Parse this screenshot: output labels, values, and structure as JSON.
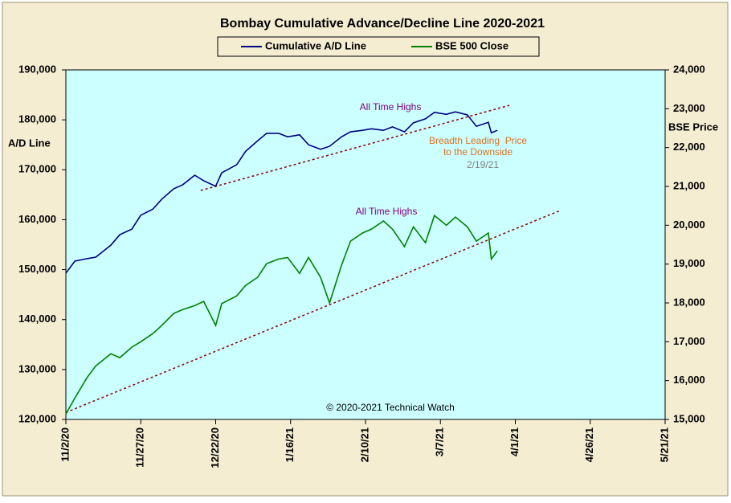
{
  "chart_data": {
    "type": "line",
    "title": "Bombay Cumulative Advance/Decline Line 2020-2021",
    "y_label": "A/D Line",
    "y2_label": "BSE Price",
    "x": [
      "2020-11-02",
      "2020-11-05",
      "2020-11-09",
      "2020-11-12",
      "2020-11-17",
      "2020-11-20",
      "2020-11-24",
      "2020-11-27",
      "2020-12-01",
      "2020-12-04",
      "2020-12-08",
      "2020-12-11",
      "2020-12-15",
      "2020-12-18",
      "2020-12-22",
      "2020-12-24",
      "2020-12-29",
      "2021-01-01",
      "2021-01-05",
      "2021-01-08",
      "2021-01-12",
      "2021-01-15",
      "2021-01-19",
      "2021-01-22",
      "2021-01-26",
      "2021-01-29",
      "2021-02-02",
      "2021-02-05",
      "2021-02-09",
      "2021-02-12",
      "2021-02-16",
      "2021-02-19",
      "2021-02-23",
      "2021-02-26",
      "2021-03-02",
      "2021-03-05",
      "2021-03-09",
      "2021-03-12",
      "2021-03-16",
      "2021-03-19",
      "2021-03-23",
      "2021-03-24",
      "2021-03-26"
    ],
    "series": [
      {
        "name": "Cumulative A/D Line",
        "color": "#000080",
        "axis": "y",
        "values": [
          149300,
          151700,
          152200,
          152500,
          154900,
          157000,
          158100,
          160900,
          162100,
          164100,
          166200,
          167000,
          168900,
          167800,
          166700,
          169400,
          171000,
          173700,
          175800,
          177300,
          177300,
          176600,
          177000,
          175000,
          174100,
          174700,
          176600,
          177600,
          177900,
          178200,
          177900,
          178600,
          177600,
          179400,
          180200,
          181500,
          181100,
          181600,
          181000,
          178700,
          179500,
          177400,
          177900
        ]
      },
      {
        "name": "BSE 500 Close",
        "color": "#008000",
        "axis": "y2",
        "values": [
          15140,
          15550,
          16070,
          16380,
          16690,
          16590,
          16860,
          17000,
          17210,
          17420,
          17730,
          17830,
          17930,
          18040,
          17420,
          17980,
          18180,
          18450,
          18660,
          19010,
          19130,
          19170,
          18760,
          19170,
          18660,
          18000,
          18970,
          19590,
          19800,
          19900,
          20110,
          19900,
          19450,
          19960,
          19550,
          20250,
          20000,
          20210,
          19960,
          19590,
          19800,
          19130,
          19340
        ]
      }
    ],
    "trend_lines": [
      {
        "axis": "y",
        "color": "#8b0000",
        "x": [
          "2020-12-17",
          "2021-03-30"
        ],
        "values": [
          165850,
          182900
        ]
      },
      {
        "axis": "y2",
        "color": "#8b0000",
        "x": [
          "2020-11-02",
          "2021-04-16"
        ],
        "values": [
          15180,
          20380
        ]
      }
    ],
    "annotations": [
      {
        "text": "All Time Highs",
        "color": "#800080"
      },
      {
        "text": "All Time Highs",
        "color": "#800080"
      },
      {
        "text": "Breadth Leading  Price",
        "color": "#e07020"
      },
      {
        "text": "to the Downside",
        "color": "#e07020"
      },
      {
        "text": "2/19/21",
        "color": "#808080"
      },
      {
        "text": "© 2020-2021 Technical Watch",
        "color": "#000000"
      }
    ],
    "xlim": [
      "2020-11-02",
      "2021-05-21"
    ],
    "xticks": [
      {
        "value": "2020-11-02",
        "label": "11/2/20"
      },
      {
        "value": "2020-11-27",
        "label": "11/27/20"
      },
      {
        "value": "2020-12-22",
        "label": "12/22/20"
      },
      {
        "value": "2021-01-16",
        "label": "1/16/21"
      },
      {
        "value": "2021-02-10",
        "label": "2/10/21"
      },
      {
        "value": "2021-03-07",
        "label": "3/7/21"
      },
      {
        "value": "2021-04-01",
        "label": "4/1/21"
      },
      {
        "value": "2021-04-26",
        "label": "4/26/21"
      },
      {
        "value": "2021-05-21",
        "label": "5/21/21"
      }
    ],
    "ylim": [
      120000,
      190000
    ],
    "yticks": [
      {
        "value": 120000,
        "label": "120,000"
      },
      {
        "value": 130000,
        "label": "130,000"
      },
      {
        "value": 140000,
        "label": "140,000"
      },
      {
        "value": 150000,
        "label": "150,000"
      },
      {
        "value": 160000,
        "label": "160,000"
      },
      {
        "value": 170000,
        "label": "170,000"
      },
      {
        "value": 180000,
        "label": "180,000"
      },
      {
        "value": 190000,
        "label": "190,000"
      }
    ],
    "y2lim": [
      15000,
      24000
    ],
    "y2ticks": [
      {
        "value": 15000,
        "label": "15,000"
      },
      {
        "value": 16000,
        "label": "16,000"
      },
      {
        "value": 17000,
        "label": "17,000"
      },
      {
        "value": 18000,
        "label": "18,000"
      },
      {
        "value": 19000,
        "label": "19,000"
      },
      {
        "value": 20000,
        "label": "20,000"
      },
      {
        "value": 21000,
        "label": "21,000"
      },
      {
        "value": 22000,
        "label": "22,000"
      },
      {
        "value": 23000,
        "label": "23,000"
      },
      {
        "value": 24000,
        "label": "24,000"
      }
    ],
    "plot_background": "#ccffff"
  }
}
